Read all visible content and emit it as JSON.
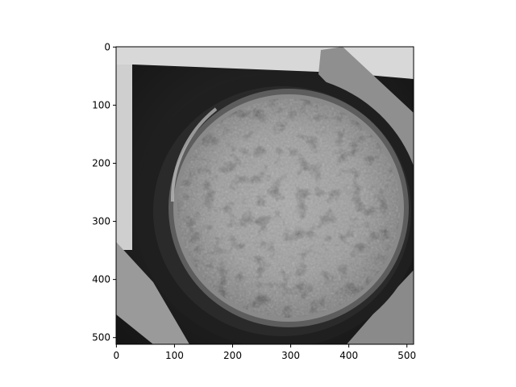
{
  "image": {
    "description_colors": {
      "background": "#ffffff",
      "frame": "#000000"
    },
    "pixel_size": [
      512,
      512
    ]
  },
  "axes": {
    "x_ticks": [
      "0",
      "100",
      "200",
      "300",
      "400",
      "500"
    ],
    "y_ticks": [
      "0",
      "100",
      "200",
      "300",
      "400",
      "500"
    ],
    "xlim": [
      -0.5,
      511.5
    ],
    "ylim": [
      511.5,
      -0.5
    ]
  }
}
